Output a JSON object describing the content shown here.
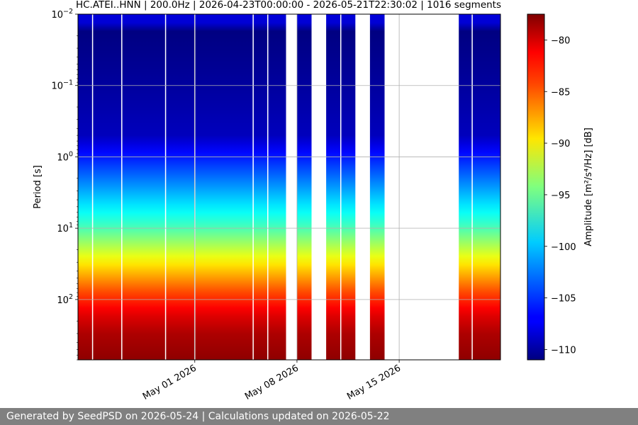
{
  "chart_data": {
    "type": "heatmap",
    "title": "HC.ATEI..HNN | 200.0Hz | 2026-04-23T00:00:00 - 2026-05-21T22:30:02 | 1016 segments",
    "xlabel": "",
    "ylabel": "Period [s]",
    "colorbar_label": "Amplitude [m²/s⁴/Hz] [dB]",
    "colormap": "jet",
    "x_range": [
      "2026-04-23T00:00:00",
      "2026-05-21T22:30:02"
    ],
    "y_scale": "log",
    "y_inverted": true,
    "y_range": [
      0.01,
      700
    ],
    "y_ticks": [
      {
        "value": 0.01,
        "base": "10",
        "exp": "−2"
      },
      {
        "value": 0.1,
        "base": "10",
        "exp": "−1"
      },
      {
        "value": 1,
        "base": "10",
        "exp": "0"
      },
      {
        "value": 10,
        "base": "10",
        "exp": "1"
      },
      {
        "value": 100,
        "base": "10",
        "exp": "2"
      }
    ],
    "x_ticks": [
      {
        "date": "2026-05-01",
        "label": "May 01 2026"
      },
      {
        "date": "2026-05-08",
        "label": "May 08 2026"
      },
      {
        "date": "2026-05-15",
        "label": "May 15 2026"
      }
    ],
    "color_range": [
      -111,
      -77.5
    ],
    "colorbar_ticks": [
      -80,
      -85,
      -90,
      -95,
      -100,
      -105,
      -110
    ],
    "grid": true,
    "data_intervals": [
      [
        "2026-04-23T00:00:00",
        "2026-05-07T06:00:00"
      ],
      [
        "2026-05-08T00:00:00",
        "2026-05-09T00:00:00"
      ],
      [
        "2026-05-10T00:00:00",
        "2026-05-12T00:00:00"
      ],
      [
        "2026-05-13T00:00:00",
        "2026-05-14T00:00:00"
      ],
      [
        "2026-05-19T02:00:00",
        "2026-05-21T22:30:02"
      ]
    ],
    "vertical_gaps": [
      "2026-04-24T00:00:00",
      "2026-04-26T00:00:00",
      "2026-04-29T00:00:00",
      "2026-05-01T00:00:00",
      "2026-05-05T00:00:00",
      "2026-05-06T00:00:00",
      "2026-05-11T00:00:00",
      "2026-05-20T00:00:00"
    ],
    "psd_profile": [
      {
        "period": 0.01,
        "db": -108
      },
      {
        "period": 0.013,
        "db": -108
      },
      {
        "period": 0.016,
        "db": -111
      },
      {
        "period": 0.1,
        "db": -110
      },
      {
        "period": 0.5,
        "db": -109
      },
      {
        "period": 1,
        "db": -106
      },
      {
        "period": 2,
        "db": -103
      },
      {
        "period": 5,
        "db": -99
      },
      {
        "period": 10,
        "db": -96
      },
      {
        "period": 20,
        "db": -92
      },
      {
        "period": 40,
        "db": -88
      },
      {
        "period": 80,
        "db": -84
      },
      {
        "period": 150,
        "db": -81
      },
      {
        "period": 300,
        "db": -79
      },
      {
        "period": 700,
        "db": -78
      }
    ]
  },
  "footer": {
    "text": "Generated by SeedPSD on 2026-05-24 | Calculations updated on 2026-05-22"
  }
}
